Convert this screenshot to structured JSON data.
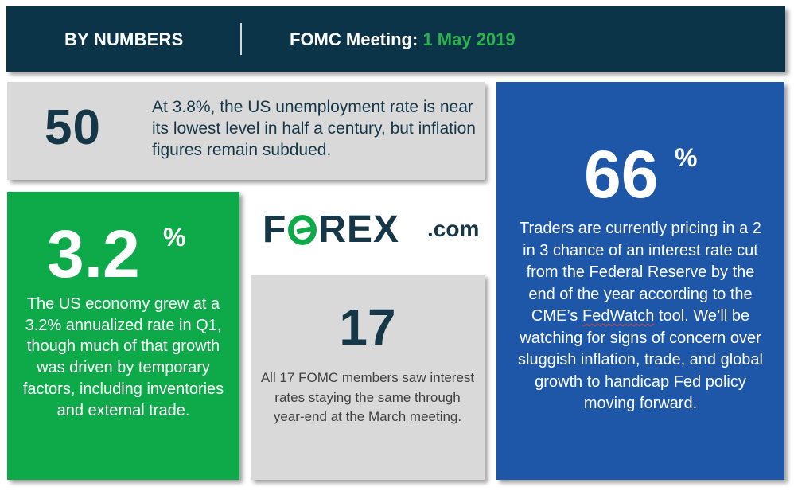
{
  "header": {
    "section_label": "BY NUMBERS",
    "meeting_label": "FOMC Meeting:",
    "meeting_date": "1 May 2019"
  },
  "unemployment": {
    "figure": "50",
    "text": "At 3.8%, the US unemployment rate is near its lowest level in half a century, but inflation figures remain subdued."
  },
  "gdp": {
    "figure": "3.2",
    "unit": "%",
    "text": "The US economy grew at a 3.2% annualized rate in Q1, though much of that growth was driven by temporary factors, including inventories and external trade."
  },
  "logo": {
    "word_prefix": "F",
    "word_suffix": "REX",
    "domain": ".com"
  },
  "fomc_members": {
    "figure": "17",
    "text": "All 17 FOMC members saw interest rates staying the same through year-end at the March meeting."
  },
  "rate_cut": {
    "figure": "66",
    "unit": "%",
    "text_before": "Traders are currently pricing in a 2 in 3 chance of an interest rate cut from the Federal Reserve by the end of the year according to the CME’s ",
    "tool_name": "FedWatch",
    "text_after": " tool. We’ll be watching for signs of concern over sluggish inflation, trade, and global growth to handicap Fed policy moving forward."
  },
  "colors": {
    "header_bg": "#0b3449",
    "accent_green": "#0eaa4a",
    "date_green": "#2bb34d",
    "panel_gray": "#d9d9d9",
    "panel_blue": "#1e57a8",
    "dark_text": "#163748"
  }
}
